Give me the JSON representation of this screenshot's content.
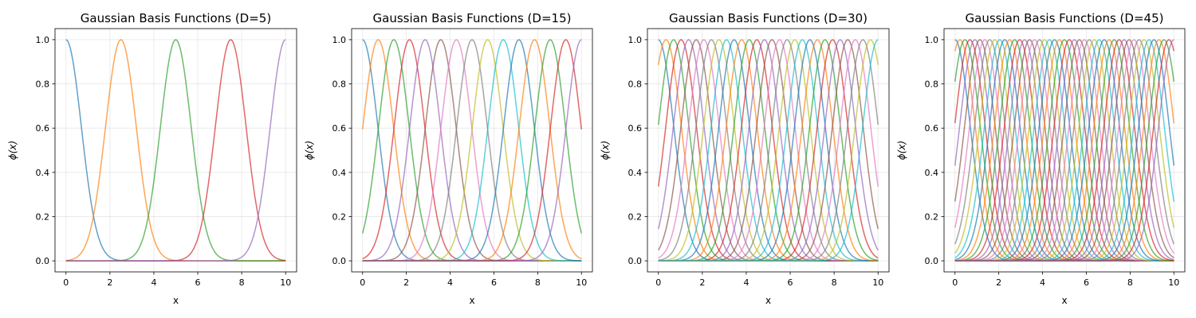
{
  "palette": [
    "#1f77b4",
    "#ff7f0e",
    "#2ca02c",
    "#d62728",
    "#9467bd",
    "#8c564b",
    "#e377c2",
    "#7f7f7f",
    "#bcbd22",
    "#17becf"
  ],
  "chart_data": [
    {
      "type": "line",
      "title": "Gaussian Basis Functions (D=5)",
      "xlabel": "x",
      "ylabel": "ϕ(x)",
      "basis_count": 5,
      "xlim": [
        -0.5,
        10.5
      ],
      "ylim": [
        -0.05,
        1.05
      ],
      "xticks": [
        0,
        2,
        4,
        6,
        8,
        10
      ],
      "yticks": [
        0.0,
        0.2,
        0.4,
        0.6,
        0.8,
        1.0
      ],
      "xtick_labels": [
        "0",
        "2",
        "4",
        "6",
        "8",
        "10"
      ],
      "ytick_labels": [
        "0.0",
        "0.2",
        "0.4",
        "0.6",
        "0.8",
        "1.0"
      ],
      "centers": [
        0,
        2.5,
        5,
        7.5,
        10
      ],
      "width": 0.7,
      "x_range": [
        0,
        10
      ],
      "grid": true,
      "line_alpha": 0.7
    },
    {
      "type": "line",
      "title": "Gaussian Basis Functions (D=15)",
      "xlabel": "x",
      "ylabel": "ϕ(x)",
      "basis_count": 15,
      "xlim": [
        -0.5,
        10.5
      ],
      "ylim": [
        -0.05,
        1.05
      ],
      "xticks": [
        0,
        2,
        4,
        6,
        8,
        10
      ],
      "yticks": [
        0.0,
        0.2,
        0.4,
        0.6,
        0.8,
        1.0
      ],
      "xtick_labels": [
        "0",
        "2",
        "4",
        "6",
        "8",
        "10"
      ],
      "ytick_labels": [
        "0.0",
        "0.2",
        "0.4",
        "0.6",
        "0.8",
        "1.0"
      ],
      "centers": [
        0,
        0.714,
        1.429,
        2.143,
        2.857,
        3.571,
        4.286,
        5,
        5.714,
        6.429,
        7.143,
        7.857,
        8.571,
        9.286,
        10
      ],
      "width": 0.7,
      "x_range": [
        0,
        10
      ],
      "grid": true,
      "line_alpha": 0.7
    },
    {
      "type": "line",
      "title": "Gaussian Basis Functions (D=30)",
      "xlabel": "x",
      "ylabel": "ϕ(x)",
      "basis_count": 30,
      "xlim": [
        -0.5,
        10.5
      ],
      "ylim": [
        -0.05,
        1.05
      ],
      "xticks": [
        0,
        2,
        4,
        6,
        8,
        10
      ],
      "yticks": [
        0.0,
        0.2,
        0.4,
        0.6,
        0.8,
        1.0
      ],
      "xtick_labels": [
        "0",
        "2",
        "4",
        "6",
        "8",
        "10"
      ],
      "ytick_labels": [
        "0.0",
        "0.2",
        "0.4",
        "0.6",
        "0.8",
        "1.0"
      ],
      "centers": [
        0,
        0.345,
        0.69,
        1.034,
        1.379,
        1.724,
        2.069,
        2.414,
        2.759,
        3.103,
        3.448,
        3.793,
        4.138,
        4.483,
        4.828,
        5.172,
        5.517,
        5.862,
        6.207,
        6.552,
        6.897,
        7.241,
        7.586,
        7.931,
        8.276,
        8.621,
        8.966,
        9.31,
        9.655,
        10
      ],
      "width": 0.7,
      "x_range": [
        0,
        10
      ],
      "grid": true,
      "line_alpha": 0.7
    },
    {
      "type": "line",
      "title": "Gaussian Basis Functions (D=45)",
      "xlabel": "x",
      "ylabel": "ϕ(x)",
      "basis_count": 45,
      "xlim": [
        -0.5,
        10.5
      ],
      "ylim": [
        -0.05,
        1.05
      ],
      "xticks": [
        0,
        2,
        4,
        6,
        8,
        10
      ],
      "yticks": [
        0.0,
        0.2,
        0.4,
        0.6,
        0.8,
        1.0
      ],
      "xtick_labels": [
        "0",
        "2",
        "4",
        "6",
        "8",
        "10"
      ],
      "ytick_labels": [
        "0.0",
        "0.2",
        "0.4",
        "0.6",
        "0.8",
        "1.0"
      ],
      "centers": [
        0,
        0.227,
        0.455,
        0.682,
        0.909,
        1.136,
        1.364,
        1.591,
        1.818,
        2.045,
        2.273,
        2.5,
        2.727,
        2.955,
        3.182,
        3.409,
        3.636,
        3.864,
        4.091,
        4.318,
        4.545,
        4.773,
        5,
        5.227,
        5.455,
        5.682,
        5.909,
        6.136,
        6.364,
        6.591,
        6.818,
        7.045,
        7.273,
        7.5,
        7.727,
        7.955,
        8.182,
        8.409,
        8.636,
        8.864,
        9.091,
        9.318,
        9.545,
        9.773,
        10
      ],
      "width": 0.7,
      "x_range": [
        0,
        10
      ],
      "grid": true,
      "line_alpha": 0.7
    }
  ]
}
